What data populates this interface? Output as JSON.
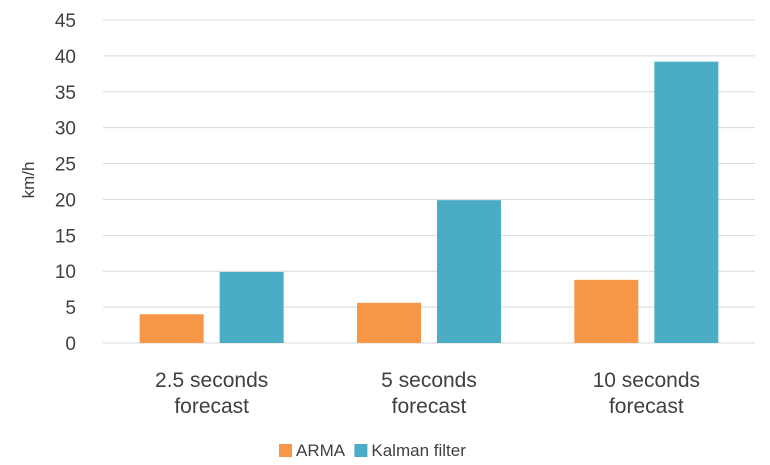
{
  "chart_data": {
    "type": "bar",
    "categories": [
      [
        "2.5 seconds",
        "forecast"
      ],
      [
        "5 seconds",
        "forecast"
      ],
      [
        "10 seconds",
        "forecast"
      ]
    ],
    "series": [
      {
        "name": "ARMA",
        "values": [
          4.0,
          5.6,
          8.8
        ],
        "color": "#F79646"
      },
      {
        "name": "Kalman filter",
        "values": [
          9.9,
          19.9,
          39.2
        ],
        "color": "#4BACC6"
      }
    ],
    "ylabel": "km/h",
    "ylim": [
      0,
      45
    ],
    "yticks": [
      0,
      5,
      10,
      15,
      20,
      25,
      30,
      35,
      40,
      45
    ],
    "grid": true,
    "legend": "bottom",
    "grid_color": "#D9D9D9"
  }
}
